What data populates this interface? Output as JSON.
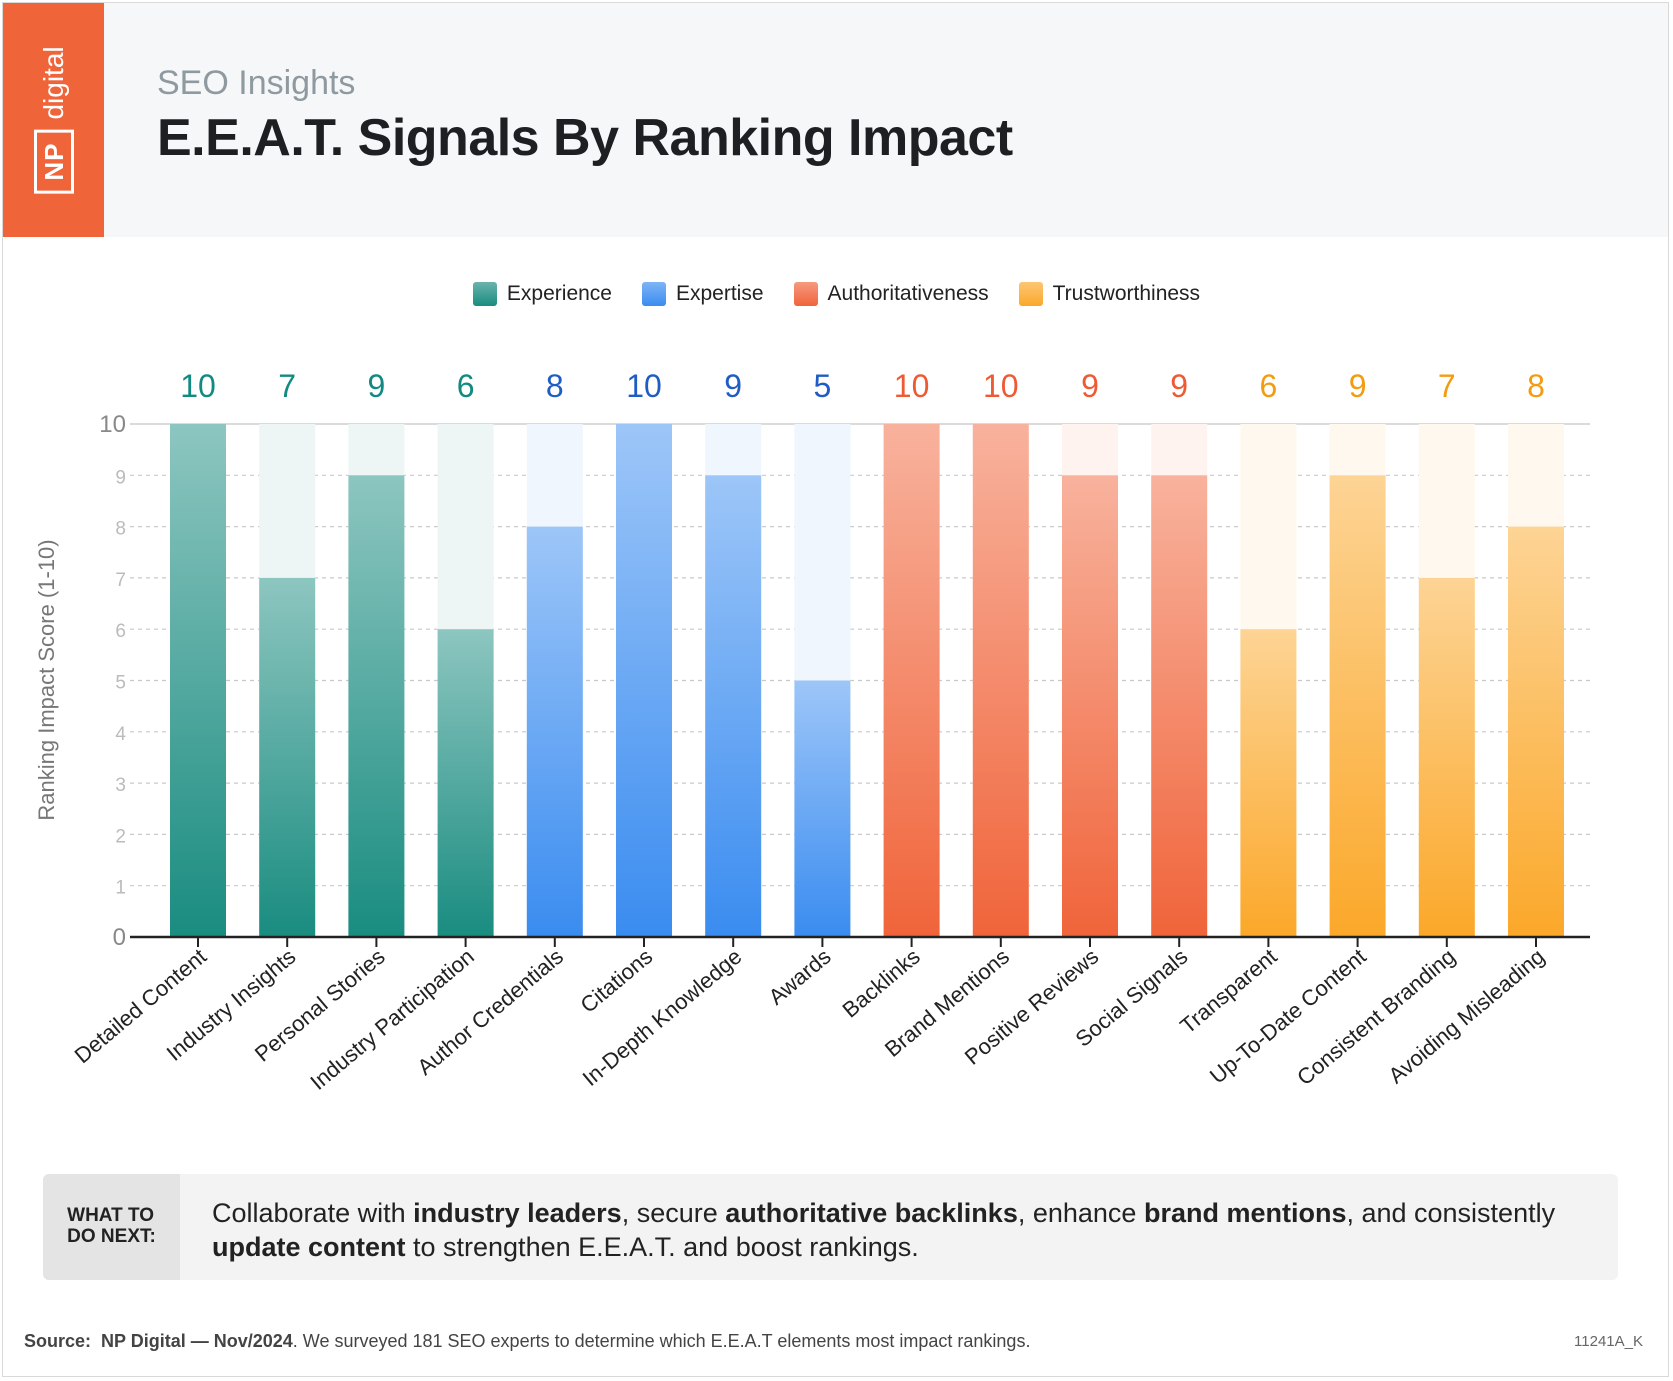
{
  "header": {
    "logo_np": "NP",
    "logo_word": "digital",
    "subtitle": "SEO Insights",
    "title": "E.E.A.T. Signals By Ranking Impact"
  },
  "colors": {
    "experience": "#1a8c80",
    "expertise": "#3a8cf0",
    "authoritativeness": "#f0643a",
    "trustworthiness": "#fba82a"
  },
  "chart_data": {
    "type": "bar",
    "title": "E.E.A.T. Signals By Ranking Impact",
    "xlabel": "",
    "ylabel": "Ranking Impact Score (1-10)",
    "ylim": [
      0,
      10
    ],
    "yticks": [
      0,
      1,
      2,
      3,
      4,
      5,
      6,
      7,
      8,
      9,
      10
    ],
    "grid": true,
    "legend_position": "top-center",
    "series": [
      {
        "name": "Experience",
        "color": "#1a8c80",
        "categories": [
          "Detailed Content",
          "Industry Insights",
          "Personal Stories",
          "Industry Participation"
        ],
        "values": [
          10,
          7,
          9,
          6
        ]
      },
      {
        "name": "Expertise",
        "color": "#3a8cf0",
        "categories": [
          "Author Credentials",
          "Citations",
          "In-Depth Knowledge",
          "Awards"
        ],
        "values": [
          8,
          10,
          9,
          5
        ]
      },
      {
        "name": "Authoritativeness",
        "color": "#f0643a",
        "categories": [
          "Backlinks",
          "Brand Mentions",
          "Positive Reviews",
          "Social Signals"
        ],
        "values": [
          10,
          10,
          9,
          9
        ]
      },
      {
        "name": "Trustworthiness",
        "color": "#fba82a",
        "categories": [
          "Transparent",
          "Up-To-Date Content",
          "Consistent Branding",
          "Avoiding Misleading"
        ],
        "values": [
          6,
          9,
          7,
          8
        ]
      }
    ]
  },
  "callout": {
    "tag_line1": "WHAT TO",
    "tag_line2": "DO NEXT:",
    "t1": "Collaborate with ",
    "b1": "industry leaders",
    "t2": ", secure ",
    "b2": "authoritative backlinks",
    "t3": ", enhance ",
    "b3": "brand mentions",
    "t4": ", and consistently ",
    "b4": "update content",
    "t5": " to strengthen E.E.A.T. and boost rankings."
  },
  "footer": {
    "source_label": "Source:",
    "source_bold": "NP Digital — Nov/2024",
    "source_text": ". We surveyed 181 SEO experts to determine which E.E.A.T elements most impact rankings.",
    "code": "11241A_K"
  }
}
